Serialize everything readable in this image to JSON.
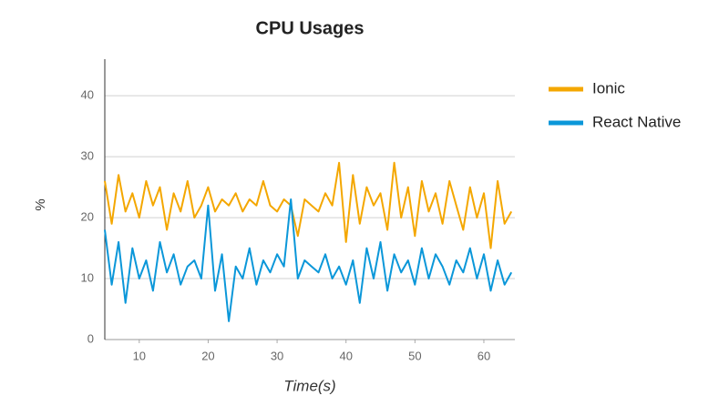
{
  "chart_data": {
    "type": "line",
    "title": "CPU Usages",
    "x_label": "Time(s)",
    "y_label": "%",
    "x": [
      5,
      6,
      7,
      8,
      9,
      10,
      11,
      12,
      13,
      14,
      15,
      16,
      17,
      18,
      19,
      20,
      21,
      22,
      23,
      24,
      25,
      26,
      27,
      28,
      29,
      30,
      31,
      32,
      33,
      34,
      35,
      36,
      37,
      38,
      39,
      40,
      41,
      42,
      43,
      44,
      45,
      46,
      47,
      48,
      49,
      50,
      51,
      52,
      53,
      54,
      55,
      56,
      57,
      58,
      59,
      60,
      61,
      62,
      63,
      64
    ],
    "series": [
      {
        "name": "Ionic",
        "color": "#f4a700",
        "values": [
          26,
          19,
          27,
          21,
          24,
          20,
          26,
          22,
          25,
          18,
          24,
          21,
          26,
          20,
          22,
          25,
          21,
          23,
          22,
          24,
          21,
          23,
          22,
          26,
          22,
          21,
          23,
          22,
          17,
          23,
          22,
          21,
          24,
          22,
          29,
          16,
          27,
          19,
          25,
          22,
          24,
          18,
          29,
          20,
          25,
          17,
          26,
          21,
          24,
          19,
          26,
          22,
          18,
          25,
          20,
          24,
          15,
          26,
          19,
          21
        ]
      },
      {
        "name": "React Native",
        "color": "#0b97d9",
        "values": [
          18,
          9,
          16,
          6,
          15,
          10,
          13,
          8,
          16,
          11,
          14,
          9,
          12,
          13,
          10,
          22,
          8,
          14,
          3,
          12,
          10,
          15,
          9,
          13,
          11,
          14,
          12,
          23,
          10,
          13,
          12,
          11,
          14,
          10,
          12,
          9,
          13,
          6,
          15,
          10,
          16,
          8,
          14,
          11,
          13,
          9,
          15,
          10,
          14,
          12,
          9,
          13,
          11,
          15,
          10,
          14,
          8,
          13,
          9,
          11
        ]
      }
    ],
    "xlim": [
      5,
      64.5
    ],
    "ylim": [
      0,
      46
    ],
    "xticks": [
      10,
      20,
      30,
      40,
      50,
      60
    ],
    "yticks": [
      0,
      10,
      20,
      30,
      40
    ],
    "grid": true,
    "legend": "right"
  }
}
